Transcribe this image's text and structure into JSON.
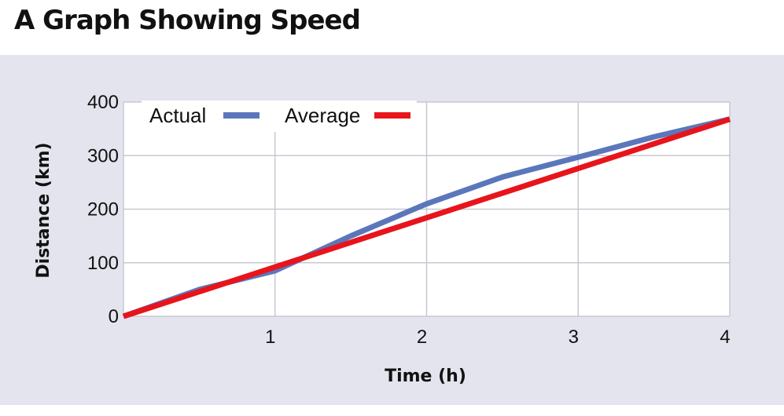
{
  "chart_data": {
    "type": "line",
    "title": "A Graph Showing Speed",
    "xlabel": "Time (h)",
    "ylabel": "Distance (km)",
    "xlim": [
      0,
      4
    ],
    "ylim": [
      0,
      400
    ],
    "x_ticks": [
      "1",
      "2",
      "3",
      "4"
    ],
    "y_ticks": [
      "0",
      "100",
      "200",
      "300",
      "400"
    ],
    "grid": true,
    "legend_position": "top",
    "series": [
      {
        "name": "Actual",
        "color": "#5b77bb",
        "x": [
          0,
          0.5,
          1,
          1.5,
          2,
          2.5,
          3,
          3.5,
          4
        ],
        "y": [
          0,
          50,
          85,
          150,
          210,
          260,
          297,
          335,
          368
        ]
      },
      {
        "name": "Average",
        "color": "#e8141c",
        "x": [
          0,
          4
        ],
        "y": [
          0,
          368
        ]
      }
    ]
  },
  "colors": {
    "plot_background": "#e4e4ee",
    "grid": "#c8c8d2"
  }
}
